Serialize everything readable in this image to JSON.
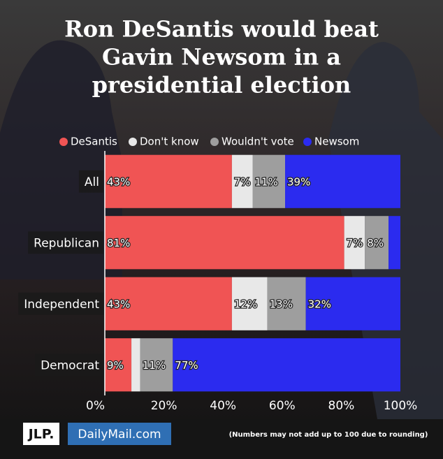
{
  "chart_data": {
    "type": "stacked-bar-horizontal",
    "title": [
      "Ron DeSantis would beat",
      "Gavin Newsom in a",
      "presidential election"
    ],
    "categories": [
      "All",
      "Republican",
      "Independent",
      "Democrat"
    ],
    "series": [
      {
        "name": "DeSantis",
        "color": "#f05454",
        "values": [
          43,
          81,
          43,
          9
        ],
        "value_labels": [
          "43%",
          "81%",
          "43%",
          "9%"
        ]
      },
      {
        "name": "Don't know",
        "color": "#e8e8e8",
        "values": [
          7,
          7,
          12,
          3
        ],
        "value_labels": [
          "7%",
          "7%",
          "12%",
          null
        ]
      },
      {
        "name": "Wouldn't vote",
        "color": "#9e9e9e",
        "values": [
          11,
          8,
          13,
          11
        ],
        "value_labels": [
          "11%",
          "8%",
          "13%",
          "11%"
        ]
      },
      {
        "name": "Newsom",
        "color": "#2b2bef",
        "values": [
          39,
          4,
          32,
          77
        ],
        "value_labels": [
          "39%",
          null,
          "32%",
          "77%"
        ]
      }
    ],
    "xlim": [
      0,
      100
    ],
    "xticks": [
      {
        "value": 0,
        "label": "0%"
      },
      {
        "value": 20,
        "label": "20%"
      },
      {
        "value": 40,
        "label": "40%"
      },
      {
        "value": 60,
        "label": "60%"
      },
      {
        "value": 80,
        "label": "80%"
      },
      {
        "value": 100,
        "label": "100%"
      }
    ],
    "grid": false,
    "legend": "top",
    "note": "(Numbers may not add up to 100 due to rounding)",
    "logos": [
      "JLP.",
      "DailyMail.com"
    ]
  }
}
